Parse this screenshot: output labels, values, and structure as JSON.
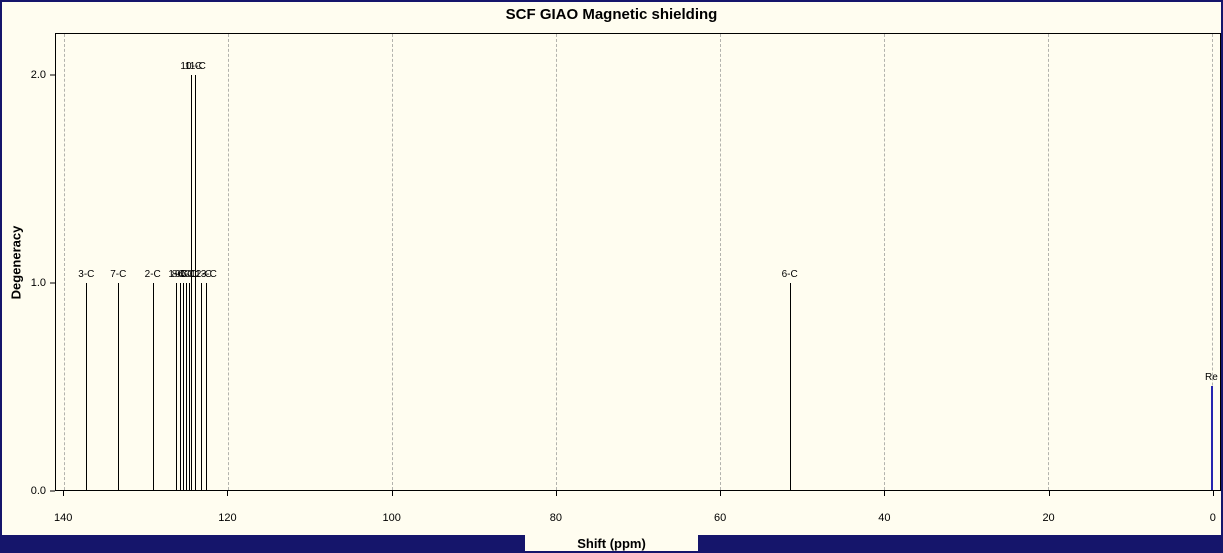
{
  "window": {
    "background_color": "#fffdf0",
    "border_color": "#15156b"
  },
  "chart_data": {
    "type": "bar",
    "title": "SCF GIAO Magnetic shielding",
    "xlabel": "Shift (ppm)",
    "ylabel": "Degeneracy",
    "xlim": [
      140,
      0
    ],
    "x_axis_reversed": true,
    "ylim": [
      0,
      2.2
    ],
    "grid": "vertical-dashed",
    "x_ticks": [
      {
        "value": 140,
        "label": "140"
      },
      {
        "value": 120,
        "label": "120"
      },
      {
        "value": 100,
        "label": "100"
      },
      {
        "value": 80,
        "label": "80"
      },
      {
        "value": 60,
        "label": "60"
      },
      {
        "value": 40,
        "label": "40"
      },
      {
        "value": 20,
        "label": "20"
      },
      {
        "value": 0,
        "label": "0"
      }
    ],
    "y_ticks": [
      {
        "value": 0,
        "label": "0.0"
      },
      {
        "value": 1,
        "label": "1.0"
      },
      {
        "value": 2,
        "label": "2.0"
      }
    ],
    "peaks": [
      {
        "label": "3-C",
        "shift_ppm": 137.3,
        "degeneracy": 1.0,
        "color": "#000000",
        "width": 1
      },
      {
        "label": "7-C",
        "shift_ppm": 133.4,
        "degeneracy": 1.0,
        "color": "#000000",
        "width": 1
      },
      {
        "label": "2-C",
        "shift_ppm": 129.2,
        "degeneracy": 1.0,
        "color": "#000000",
        "width": 1
      },
      {
        "label": "1-C",
        "shift_ppm": 126.3,
        "degeneracy": 1.0,
        "color": "#000000",
        "width": 1
      },
      {
        "label": "8-C",
        "shift_ppm": 125.9,
        "degeneracy": 1.0,
        "color": "#000000",
        "width": 1
      },
      {
        "label": "9-C",
        "shift_ppm": 125.5,
        "degeneracy": 1.0,
        "color": "#000000",
        "width": 1
      },
      {
        "label": "4-C",
        "shift_ppm": 125.1,
        "degeneracy": 1.0,
        "color": "#000000",
        "width": 1
      },
      {
        "label": "5-C",
        "shift_ppm": 124.8,
        "degeneracy": 1.0,
        "color": "#000000",
        "width": 1
      },
      {
        "label": "10-C",
        "shift_ppm": 124.5,
        "degeneracy": 2.0,
        "color": "#000000",
        "width": 1
      },
      {
        "label": "11-C",
        "shift_ppm": 124.0,
        "degeneracy": 2.0,
        "color": "#000000",
        "width": 1
      },
      {
        "label": "12-C",
        "shift_ppm": 123.3,
        "degeneracy": 1.0,
        "color": "#000000",
        "width": 1
      },
      {
        "label": "13-C",
        "shift_ppm": 122.7,
        "degeneracy": 1.0,
        "color": "#000000",
        "width": 1
      },
      {
        "label": "6-C",
        "shift_ppm": 51.5,
        "degeneracy": 1.0,
        "color": "#000000",
        "width": 1
      },
      {
        "label": "Re",
        "shift_ppm": 0.05,
        "degeneracy": 0.5,
        "color": "#2626b0",
        "width": 2,
        "is_reference": true
      }
    ]
  },
  "colors": {
    "peak": "#000000",
    "reference_peak": "#2626b0",
    "gridline": "#b3b3ad",
    "axis": "#000000",
    "text": "#000000"
  }
}
